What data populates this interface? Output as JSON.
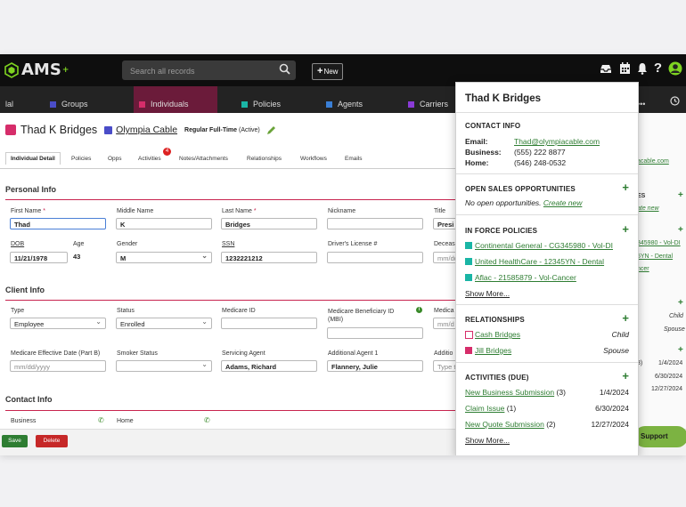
{
  "app": {
    "logo": "AMS",
    "logo_sup": "+",
    "search_placeholder": "Search all records",
    "new_label": "New"
  },
  "nav": {
    "items": [
      {
        "label": "lal",
        "color": "#888"
      },
      {
        "label": "Groups",
        "color": "#4a4dc8"
      },
      {
        "label": "Individuals",
        "color": "#d62d6a"
      },
      {
        "label": "Policies",
        "color": "#1ab5a5"
      },
      {
        "label": "Agents",
        "color": "#3a7fd6"
      },
      {
        "label": "Carriers",
        "color": "#8a3bd6"
      }
    ],
    "more": "•••"
  },
  "record": {
    "name": "Thad K Bridges",
    "company": "Olympia Cable",
    "employment": "Regular Full-Time",
    "employment_status": "(Active)"
  },
  "tabs": [
    "Individual Detail",
    "Policies",
    "Opps",
    "Activities",
    "Notes/Attachments",
    "Relationships",
    "Workflows",
    "Emails"
  ],
  "activities_badge": "4",
  "personal": {
    "heading": "Personal Info",
    "first_name_label": "First Name",
    "first_name": "Thad",
    "middle_name_label": "Middle Name",
    "middle_name": "K",
    "last_name_label": "Last Name",
    "last_name": "Bridges",
    "nickname_label": "Nickname",
    "nickname": "",
    "title_label": "Title",
    "title": "Presi",
    "dob_label": "DOB",
    "dob": "11/21/1978",
    "age_label": "Age",
    "age": "43",
    "gender_label": "Gender",
    "gender": "M",
    "ssn_label": "SSN",
    "ssn": "1232221212",
    "dl_label": "Driver's License #",
    "dl": "",
    "deceased_label": "Decease",
    "deceased": "mm/dd"
  },
  "client": {
    "heading": "Client Info",
    "type_label": "Type",
    "type": "Employee",
    "status_label": "Status",
    "status": "Enrolled",
    "medicare_id_label": "Medicare ID",
    "medicare_id": "",
    "mbi_label": "Medicare Beneficiary ID (MBI)",
    "mbi": "",
    "medicare2_label": "Medica",
    "medicare2": "mm/d",
    "med_eff_label": "Medicare Effective Date (Part B)",
    "med_eff": "mm/dd/yyyy",
    "smoker_label": "Smoker Status",
    "smoker": "",
    "serv_agent_label": "Servicing Agent",
    "serv_agent": "Adams, Richard",
    "add_agent_label": "Additional Agent 1",
    "add_agent": "Flannery, Julie",
    "add2_label": "Additio",
    "add2": "Type t"
  },
  "contact_section": {
    "heading": "Contact Info",
    "business_label": "Business",
    "home_label": "Home"
  },
  "buttons": {
    "save": "Save",
    "delete": "Delete",
    "support": "Support"
  },
  "right_panel": {
    "email_frag": "acable.com",
    "section1": "ES",
    "create_frag": "ate new",
    "policy1": "345980 - Vol-DI",
    "policy2": "5YN - Dental",
    "policy3": "ncer",
    "child": "Child",
    "spouse": "Spouse",
    "date_paren": "3)",
    "date1": "1/4/2024",
    "date2": "6/30/2024",
    "date3": "12/27/2024"
  },
  "popup": {
    "title": "Thad K Bridges",
    "contact_heading": "CONTACT INFO",
    "email_label": "Email:",
    "email": "Thad@olympiacable.com",
    "business_label": "Business:",
    "business": "(555) 222 8877",
    "home_label": "Home:",
    "home": "(546) 248-0532",
    "opps_heading": "OPEN SALES OPPORTUNITIES",
    "opps_empty": "No open opportunities.",
    "opps_create": "Create new",
    "policies_heading": "IN FORCE POLICIES",
    "policies": [
      "Continental General - CG345980 - Vol-DI",
      "United HealthCare - 12345YN - Dental",
      "Aflac - 21585879 - Vol-Cancer"
    ],
    "show_more": "Show More...",
    "rel_heading": "RELATIONSHIPS",
    "relationships": [
      {
        "name": "Cash Bridges",
        "role": "Child"
      },
      {
        "name": "Jill Bridges",
        "role": "Spouse"
      }
    ],
    "act_heading": "ACTIVITIES (DUE)",
    "activities": [
      {
        "name": "New Business Submission",
        "count": "(3)",
        "date": "1/4/2024"
      },
      {
        "name": "Claim Issue",
        "count": "(1)",
        "date": "6/30/2024"
      },
      {
        "name": "New Quote Submission",
        "count": "(2)",
        "date": "12/27/2024"
      }
    ],
    "show_more2": "Show More..."
  }
}
